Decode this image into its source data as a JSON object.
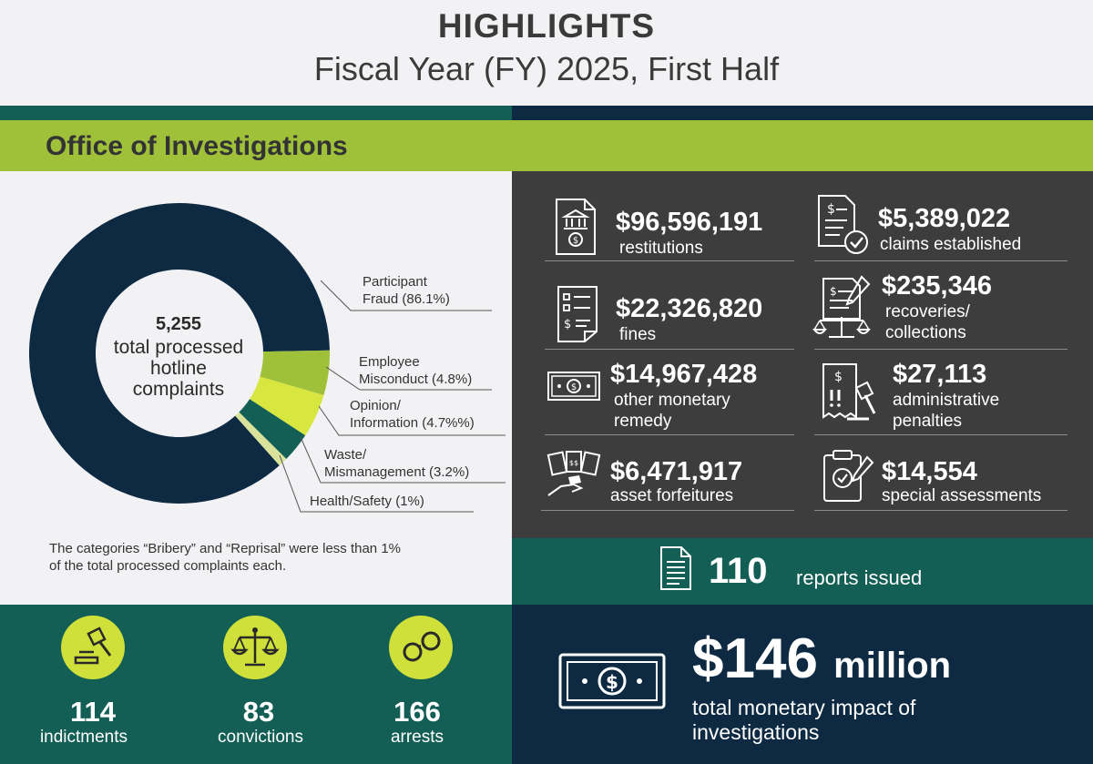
{
  "header": {
    "title": "HIGHLIGHTS",
    "subtitle": "Fiscal Year (FY) 2025, First Half"
  },
  "section": {
    "title": "Office of Investigations"
  },
  "complaints": {
    "total": "5,255",
    "total_label_line1": "total processed",
    "total_label_line2": "hotline",
    "total_label_line3": "complaints",
    "categories": [
      {
        "line1": "Participant",
        "line2": "Fraud (86.1%)",
        "percent": 86.1,
        "color": "#0d2a42"
      },
      {
        "line1": "Employee",
        "line2": "Misconduct (4.8%)",
        "percent": 4.8,
        "color": "#9fc13a"
      },
      {
        "line1": "Opinion/",
        "line2": "Information (4.7%%)",
        "percent": 4.7,
        "color": "#d8e640"
      },
      {
        "line1": "Waste/",
        "line2": "Mismanagement (3.2%)",
        "percent": 3.2,
        "color": "#145f55"
      },
      {
        "line1": "Health/Safety (1%)",
        "line2": "",
        "percent": 1.0,
        "color": "#d9e29a"
      }
    ],
    "note_line1": "The categories “Bribery” and “Reprisal” were less than 1%",
    "note_line2": "of the total processed complaints each."
  },
  "monetary": {
    "restitutions": {
      "value": "$96,596,191",
      "label": "restitutions",
      "icon": "bank-document-icon"
    },
    "claims": {
      "value": "$5,389,022",
      "label": "claims established",
      "icon": "document-check-icon"
    },
    "fines": {
      "value": "$22,326,820",
      "label": "fines",
      "icon": "list-document-icon"
    },
    "recoveries": {
      "value": "$235,346",
      "label_line1": "recoveries/",
      "label_line2": "collections",
      "icon": "scales-document-icon"
    },
    "other": {
      "value": "$14,967,428",
      "label_line1": "other monetary",
      "label_line2": "remedy",
      "icon": "banknote-icon"
    },
    "admin": {
      "value": "$27,113",
      "label_line1": "administrative",
      "label_line2": "penalties",
      "icon": "receipt-gavel-icon"
    },
    "forfeitures": {
      "value": "$6,471,917",
      "label": "asset forfeitures",
      "icon": "money-hand-icon"
    },
    "special": {
      "value": "$14,554",
      "label": "special assessments",
      "icon": "clipboard-check-icon"
    }
  },
  "reports": {
    "count": "110",
    "label": "reports issued",
    "icon": "report-document-icon"
  },
  "outcomes": [
    {
      "number": "114",
      "label": "indictments",
      "icon": "gavel-icon"
    },
    {
      "number": "83",
      "label": "convictions",
      "icon": "scales-icon"
    },
    {
      "number": "166",
      "label": "arrests",
      "icon": "handcuffs-icon"
    }
  ],
  "impact": {
    "amount": "$146",
    "unit": "million",
    "label_line1": "total monetary impact of",
    "label_line2": "investigations",
    "icon": "cash-icon"
  }
}
